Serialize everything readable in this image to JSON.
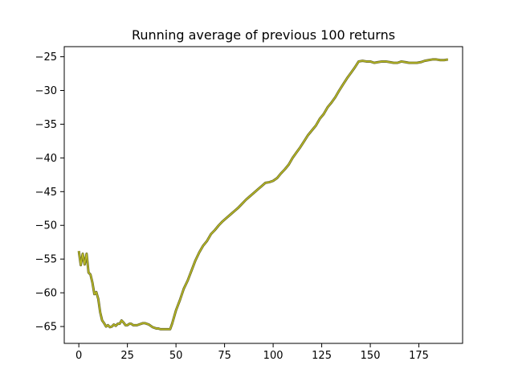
{
  "chart_data": {
    "type": "line",
    "title": "Running average of previous 100 returns",
    "xlabel": "",
    "ylabel": "",
    "xlim": [
      -7.5,
      197.5
    ],
    "ylim": [
      -67.5,
      -23.5
    ],
    "xticks": [
      0,
      25,
      50,
      75,
      100,
      125,
      150,
      175
    ],
    "xtick_labels": [
      "0",
      "25",
      "50",
      "75",
      "100",
      "125",
      "150",
      "175"
    ],
    "yticks": [
      -65,
      -60,
      -55,
      -50,
      -45,
      -40,
      -35,
      -30,
      -25
    ],
    "ytick_labels": [
      "−65",
      "−60",
      "−55",
      "−50",
      "−45",
      "−40",
      "−35",
      "−30",
      "−25"
    ],
    "grid": false,
    "series": [
      {
        "color": "#6b6b2a",
        "highlight": "#bcbd22",
        "x": [
          0,
          1,
          2,
          3,
          4,
          5,
          6,
          7,
          8,
          9,
          10,
          11,
          12,
          13,
          14,
          15,
          16,
          17,
          18,
          19,
          20,
          21,
          22,
          23,
          24,
          25,
          26,
          27,
          28,
          29,
          30,
          31,
          32,
          33,
          34,
          35,
          36,
          37,
          38,
          39,
          40,
          41,
          42,
          43,
          44,
          45,
          46,
          47,
          48,
          49,
          50,
          52,
          54,
          56,
          58,
          60,
          62,
          64,
          66,
          68,
          70,
          72,
          74,
          76,
          78,
          80,
          82,
          84,
          86,
          88,
          90,
          92,
          94,
          96,
          98,
          100,
          102,
          104,
          106,
          108,
          110,
          112,
          114,
          116,
          118,
          120,
          122,
          124,
          126,
          128,
          130,
          132,
          134,
          136,
          138,
          140,
          142,
          144,
          146,
          148,
          150,
          152,
          154,
          156,
          158,
          160,
          162,
          164,
          166,
          168,
          170,
          172,
          174,
          176,
          178,
          180,
          182,
          184,
          186,
          188,
          190
        ],
        "y": [
          -53.8,
          -55.9,
          -54.2,
          -55.8,
          -54.2,
          -57.0,
          -57.3,
          -58.5,
          -60.2,
          -59.9,
          -60.9,
          -62.9,
          -64.1,
          -64.5,
          -65.0,
          -64.8,
          -65.1,
          -65.0,
          -64.7,
          -64.9,
          -64.6,
          -64.6,
          -64.1,
          -64.4,
          -64.8,
          -64.8,
          -64.6,
          -64.6,
          -64.8,
          -64.8,
          -64.8,
          -64.7,
          -64.6,
          -64.5,
          -64.5,
          -64.6,
          -64.7,
          -64.9,
          -65.1,
          -65.2,
          -65.3,
          -65.3,
          -65.4,
          -65.4,
          -65.4,
          -65.4,
          -65.4,
          -65.4,
          -64.6,
          -63.6,
          -62.6,
          -61.1,
          -59.4,
          -58.2,
          -56.7,
          -55.2,
          -54.0,
          -53.0,
          -52.3,
          -51.3,
          -50.7,
          -50.0,
          -49.4,
          -48.9,
          -48.4,
          -47.9,
          -47.4,
          -46.8,
          -46.2,
          -45.7,
          -45.2,
          -44.7,
          -44.2,
          -43.7,
          -43.6,
          -43.4,
          -43.0,
          -42.3,
          -41.7,
          -41.0,
          -40.0,
          -39.2,
          -38.4,
          -37.5,
          -36.6,
          -35.9,
          -35.2,
          -34.2,
          -33.5,
          -32.5,
          -31.8,
          -31.0,
          -30.0,
          -29.1,
          -28.2,
          -27.4,
          -26.6,
          -25.7,
          -25.6,
          -25.7,
          -25.7,
          -25.9,
          -25.8,
          -25.7,
          -25.7,
          -25.8,
          -25.9,
          -25.9,
          -25.7,
          -25.8,
          -25.9,
          -25.9,
          -25.9,
          -25.8,
          -25.6,
          -25.5,
          -25.4,
          -25.4,
          -25.5,
          -25.5,
          -25.4
        ]
      }
    ]
  }
}
